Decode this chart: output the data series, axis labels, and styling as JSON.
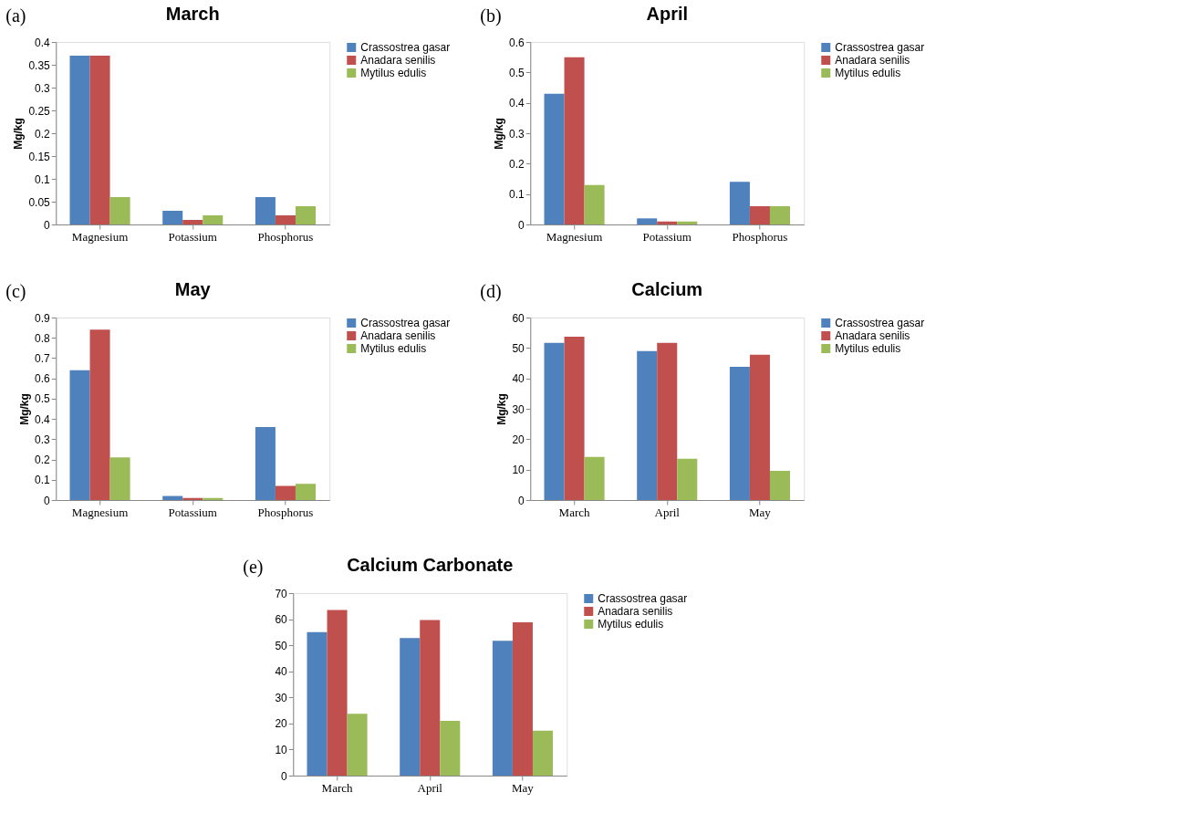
{
  "chart_data": [
    {
      "type": "bar",
      "title": "March",
      "ylabel": "Mg/kg",
      "annotations": [
        "(a)"
      ],
      "categories": [
        "Magnesium",
        "Potassium",
        "Phosphorus"
      ],
      "series": [
        {
          "name": "Crassostrea gasar",
          "color": "#4f81bd",
          "values": [
            0.37,
            0.03,
            0.06
          ]
        },
        {
          "name": "Anadara senilis",
          "color": "#c0504d",
          "values": [
            0.37,
            0.01,
            0.02
          ]
        },
        {
          "name": "Mytilus edulis",
          "color": "#9bbb59",
          "values": [
            0.06,
            0.02,
            0.04
          ]
        }
      ],
      "ylim": [
        0,
        0.4
      ],
      "yticks": [
        0,
        0.05,
        0.1,
        0.15,
        0.2,
        0.25,
        0.3,
        0.35,
        0.4
      ],
      "legend": "right",
      "grid": false
    },
    {
      "type": "bar",
      "title": "April",
      "ylabel": "Mg/kg",
      "annotations": [
        "(b)"
      ],
      "categories": [
        "Magnesium",
        "Potassium",
        "Phosphorus"
      ],
      "series": [
        {
          "name": "Crassostrea gasar",
          "color": "#4f81bd",
          "values": [
            0.43,
            0.02,
            0.14
          ]
        },
        {
          "name": "Anadara senilis",
          "color": "#c0504d",
          "values": [
            0.55,
            0.01,
            0.06
          ]
        },
        {
          "name": "Mytilus edulis",
          "color": "#9bbb59",
          "values": [
            0.13,
            0.01,
            0.06
          ]
        }
      ],
      "ylim": [
        0,
        0.6
      ],
      "yticks": [
        0,
        0.1,
        0.2,
        0.3,
        0.4,
        0.5,
        0.6
      ],
      "legend": "right",
      "grid": false
    },
    {
      "type": "bar",
      "title": "May",
      "ylabel": "Mg/kg",
      "annotations": [
        "(c)"
      ],
      "categories": [
        "Magnesium",
        "Potassium",
        "Phosphorus"
      ],
      "series": [
        {
          "name": "Crassostrea gasar",
          "color": "#4f81bd",
          "values": [
            0.64,
            0.02,
            0.36
          ]
        },
        {
          "name": "Anadara senilis",
          "color": "#c0504d",
          "values": [
            0.84,
            0.01,
            0.07
          ]
        },
        {
          "name": "Mytilus edulis",
          "color": "#9bbb59",
          "values": [
            0.21,
            0.01,
            0.08
          ]
        }
      ],
      "ylim": [
        0,
        0.9
      ],
      "yticks": [
        0,
        0.1,
        0.2,
        0.3,
        0.4,
        0.5,
        0.6,
        0.7,
        0.8,
        0.9
      ],
      "legend": "right",
      "grid": false
    },
    {
      "type": "bar",
      "title": "Calcium",
      "ylabel": "Mg/kg",
      "annotations": [
        "(d)"
      ],
      "categories": [
        "March",
        "April",
        "May"
      ],
      "series": [
        {
          "name": "Crassostrea gasar",
          "color": "#4f81bd",
          "values": [
            51.7,
            49,
            43.8
          ]
        },
        {
          "name": "Anadara senilis",
          "color": "#c0504d",
          "values": [
            53.7,
            51.7,
            47.8
          ]
        },
        {
          "name": "Mytilus edulis",
          "color": "#9bbb59",
          "values": [
            14.2,
            13.6,
            9.6
          ]
        }
      ],
      "ylim": [
        0,
        60
      ],
      "yticks": [
        0,
        10,
        20,
        30,
        40,
        50,
        60
      ],
      "legend": "right",
      "grid": false
    },
    {
      "type": "bar",
      "title": "Calcium Carbonate",
      "annotations": [
        "(e)"
      ],
      "categories": [
        "March",
        "April",
        "May"
      ],
      "series": [
        {
          "name": "Crassostrea gasar",
          "color": "#4f81bd",
          "values": [
            55,
            52.8,
            51.7
          ]
        },
        {
          "name": "Anadara senilis",
          "color": "#c0504d",
          "values": [
            63.5,
            59.7,
            58.8
          ]
        },
        {
          "name": "Mytilus edulis",
          "color": "#9bbb59",
          "values": [
            23.7,
            21,
            17.2
          ]
        }
      ],
      "ylim": [
        0,
        70
      ],
      "yticks": [
        0,
        10,
        20,
        30,
        40,
        50,
        60,
        70
      ],
      "legend": "right",
      "grid": false
    }
  ]
}
